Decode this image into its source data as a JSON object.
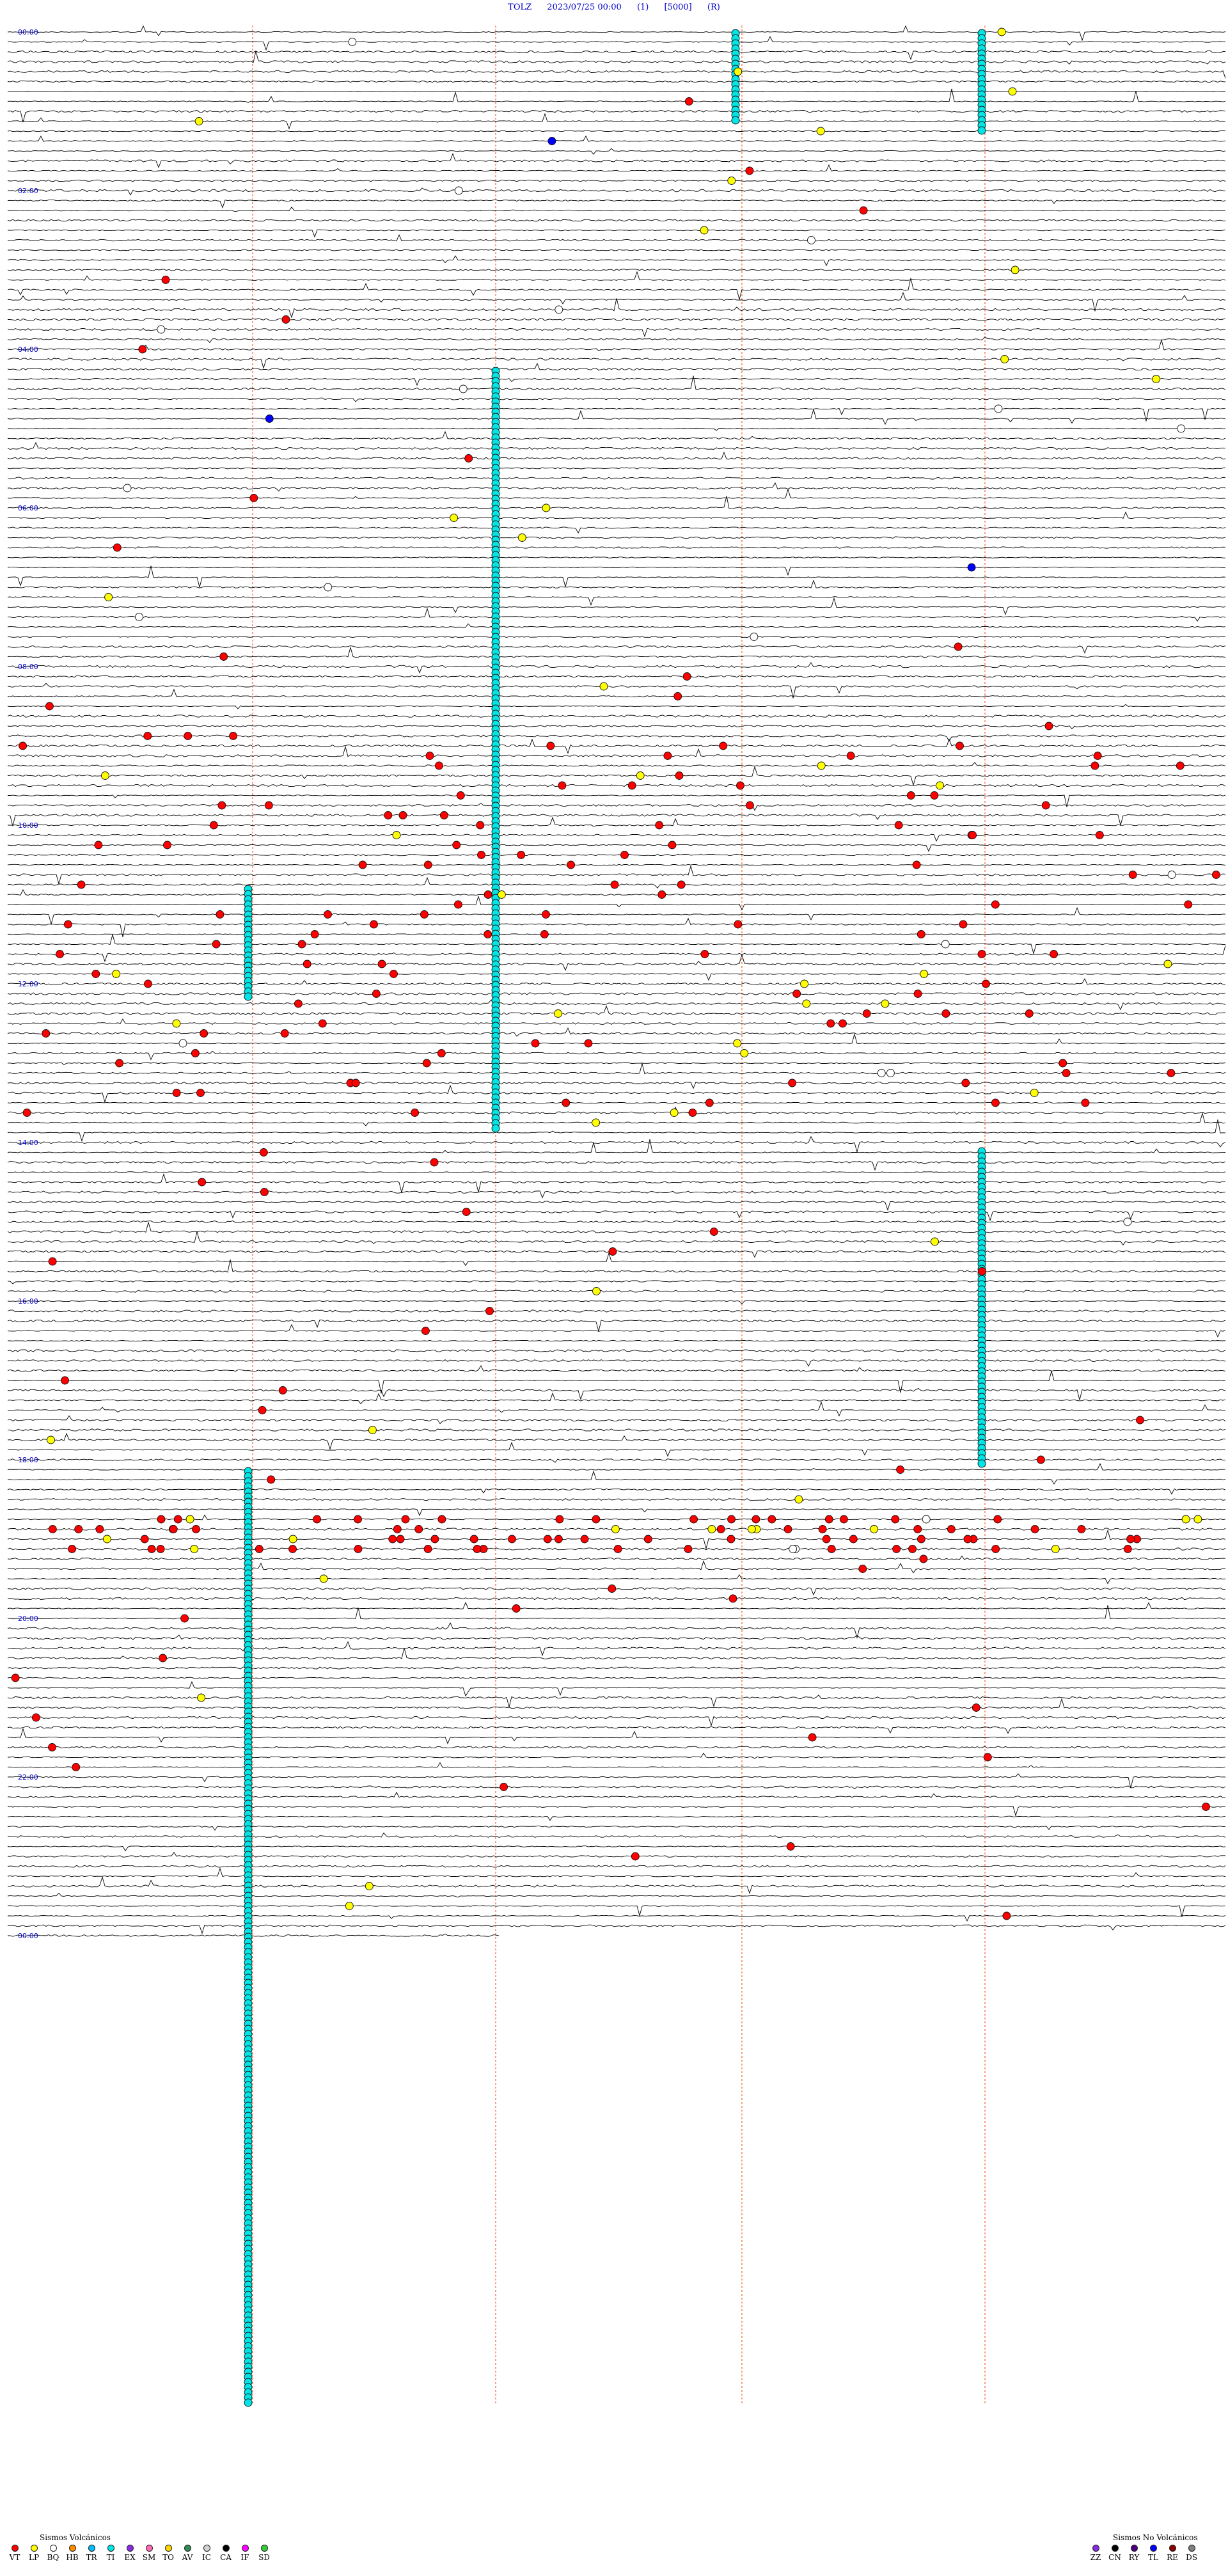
{
  "header": {
    "station": "TOLZ",
    "datetime": "2023/07/25 00:00",
    "tag1": "(1)",
    "tag2": "[5000]",
    "tag3": "(R)"
  },
  "hour_labels": [
    "00:00",
    "02:00",
    "04:00",
    "06:00",
    "08:00",
    "10:00",
    "12:00",
    "14:00",
    "16:00",
    "18:00",
    "20:00",
    "22:00",
    "00:00"
  ],
  "colors": {
    "trace": "#000000",
    "minute_mark": "#ff7f50",
    "hour_label": "#0000cc",
    "VT": "#ff0000",
    "LP": "#ffff00",
    "BQ": "#ffffff",
    "HB": "#ff8c00",
    "TR": "#00bfff",
    "TI": "#00e5e5",
    "EX": "#8a2be2",
    "SM": "#ff69b4",
    "TO": "#ffd700",
    "AV": "#2e8b57",
    "IC": "#d3d3d3",
    "CA": "#000000",
    "IF": "#ff00ff",
    "SD": "#32cd32",
    "ZZ": "#8a2be2",
    "CN": "#000000",
    "RY": "#4b0082",
    "TL": "#0000ff",
    "RE": "#8b0000",
    "DS": "#808080"
  },
  "legend_volcanic": {
    "title": "Sismos Volcánicos",
    "items": [
      {
        "code": "VT",
        "color": "#ff0000"
      },
      {
        "code": "LP",
        "color": "#ffff00"
      },
      {
        "code": "BQ",
        "color": "#ffffff"
      },
      {
        "code": "HB",
        "color": "#ff8c00"
      },
      {
        "code": "TR",
        "color": "#00bfff"
      },
      {
        "code": "TI",
        "color": "#00e5e5"
      },
      {
        "code": "EX",
        "color": "#8a2be2"
      },
      {
        "code": "SM",
        "color": "#ff69b4"
      },
      {
        "code": "TO",
        "color": "#ffd700"
      },
      {
        "code": "AV",
        "color": "#2e8b57"
      },
      {
        "code": "IC",
        "color": "#d3d3d3"
      },
      {
        "code": "CA",
        "color": "#000000"
      },
      {
        "code": "IF",
        "color": "#ff00ff"
      },
      {
        "code": "SD",
        "color": "#32cd32"
      }
    ]
  },
  "legend_nonvolcanic": {
    "title": "Sismos No Volcánicos",
    "items": [
      {
        "code": "ZZ",
        "color": "#8a2be2"
      },
      {
        "code": "CN",
        "color": "#000000"
      },
      {
        "code": "RY",
        "color": "#4b0082"
      },
      {
        "code": "TL",
        "color": "#0000ff"
      },
      {
        "code": "RE",
        "color": "#8b0000"
      },
      {
        "code": "DS",
        "color": "#808080"
      }
    ]
  }
}
